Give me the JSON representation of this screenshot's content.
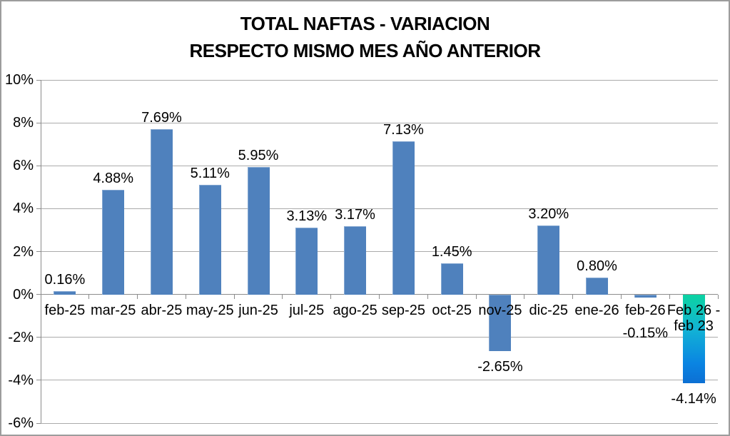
{
  "chart_data": {
    "type": "bar",
    "title": "TOTAL NAFTAS - VARIACION RESPECTO MISMO MES AÑO ANTERIOR",
    "title_lines": [
      "TOTAL NAFTAS - VARIACION",
      "RESPECTO MISMO MES AÑO ANTERIOR"
    ],
    "categories": [
      "feb-25",
      "mar-25",
      "abr-25",
      "may-25",
      "jun-25",
      "jul-25",
      "ago-25",
      "sep-25",
      "oct-25",
      "nov-25",
      "dic-25",
      "ene-26",
      "feb-26",
      "Feb 26 -\nfeb 23"
    ],
    "values": [
      0.16,
      4.88,
      7.69,
      5.11,
      5.95,
      3.13,
      3.17,
      7.13,
      1.45,
      -2.65,
      3.2,
      0.8,
      -0.15,
      -4.14
    ],
    "labels": [
      "0.16%",
      "4.88%",
      "7.69%",
      "5.11%",
      "5.95%",
      "3.13%",
      "3.17%",
      "7.13%",
      "1.45%",
      "-2.65%",
      "3.20%",
      "0.80%",
      "-0.15%",
      "-4.14%"
    ],
    "y_ticks": [
      "10%",
      "8%",
      "6%",
      "4%",
      "2%",
      "0%",
      "-2%",
      "-4%",
      "-6%"
    ],
    "y_tick_values": [
      10,
      8,
      6,
      4,
      2,
      0,
      -2,
      -4,
      -6
    ],
    "ylim": [
      -6,
      10
    ],
    "xlabel": "",
    "ylabel": "",
    "grid": true,
    "legend": "none",
    "bar_color": "#4F81BD",
    "last_bar_gradient": [
      "#0CD3A2",
      "#12B2D5",
      "#0A84E2",
      "#0C6FD3"
    ],
    "gridline_color": "#ABABAB",
    "axis_color": "#8C8C8C"
  }
}
